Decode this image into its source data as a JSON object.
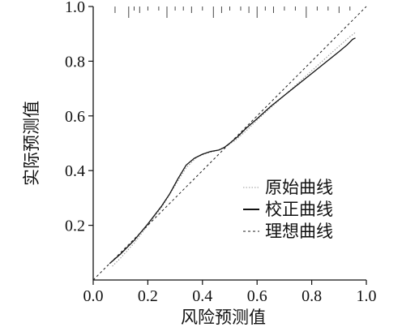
{
  "chart_data": {
    "type": "line",
    "title": "",
    "xlabel": "风险预测值",
    "ylabel": "实际预测值",
    "xlim": [
      0.0,
      1.0
    ],
    "ylim": [
      0.0,
      1.0
    ],
    "xticks": [
      "0.0",
      "0.2",
      "0.4",
      "0.6",
      "0.8",
      "1.0"
    ],
    "yticks": [
      "0.2",
      "0.4",
      "0.6",
      "0.8",
      "1.0"
    ],
    "grid": false,
    "legend_position": "lower-right",
    "series": [
      {
        "name": "原始曲线",
        "style": "dotted-light",
        "x": [
          0.07,
          0.1,
          0.15,
          0.2,
          0.25,
          0.3,
          0.34,
          0.38,
          0.42,
          0.45,
          0.48,
          0.52,
          0.56,
          0.6,
          0.65,
          0.7,
          0.75,
          0.8,
          0.85,
          0.9,
          0.94,
          0.96
        ],
        "y": [
          0.05,
          0.08,
          0.135,
          0.2,
          0.265,
          0.345,
          0.41,
          0.45,
          0.465,
          0.472,
          0.485,
          0.51,
          0.545,
          0.585,
          0.63,
          0.675,
          0.72,
          0.765,
          0.81,
          0.855,
          0.89,
          0.905
        ]
      },
      {
        "name": "校正曲线",
        "style": "solid",
        "x": [
          0.06,
          0.1,
          0.15,
          0.2,
          0.25,
          0.28,
          0.31,
          0.34,
          0.37,
          0.4,
          0.43,
          0.46,
          0.48,
          0.5,
          0.53,
          0.56,
          0.6,
          0.65,
          0.7,
          0.75,
          0.8,
          0.85,
          0.9,
          0.93,
          0.95,
          0.96
        ],
        "y": [
          0.06,
          0.095,
          0.145,
          0.205,
          0.27,
          0.315,
          0.37,
          0.42,
          0.445,
          0.46,
          0.47,
          0.475,
          0.485,
          0.5,
          0.525,
          0.555,
          0.59,
          0.635,
          0.675,
          0.715,
          0.755,
          0.795,
          0.835,
          0.86,
          0.88,
          0.885
        ]
      },
      {
        "name": "理想曲线",
        "style": "dashed",
        "x": [
          0.0,
          1.0
        ],
        "y": [
          0.0,
          1.0
        ]
      }
    ],
    "rug_x": [
      0.08,
      0.13,
      0.15,
      0.17,
      0.2,
      0.24,
      0.27,
      0.3,
      0.33,
      0.36,
      0.4,
      0.44,
      0.47,
      0.5,
      0.54,
      0.57,
      0.6,
      0.63,
      0.66,
      0.7,
      0.74,
      0.78,
      0.82,
      0.86,
      0.9,
      0.94
    ]
  }
}
